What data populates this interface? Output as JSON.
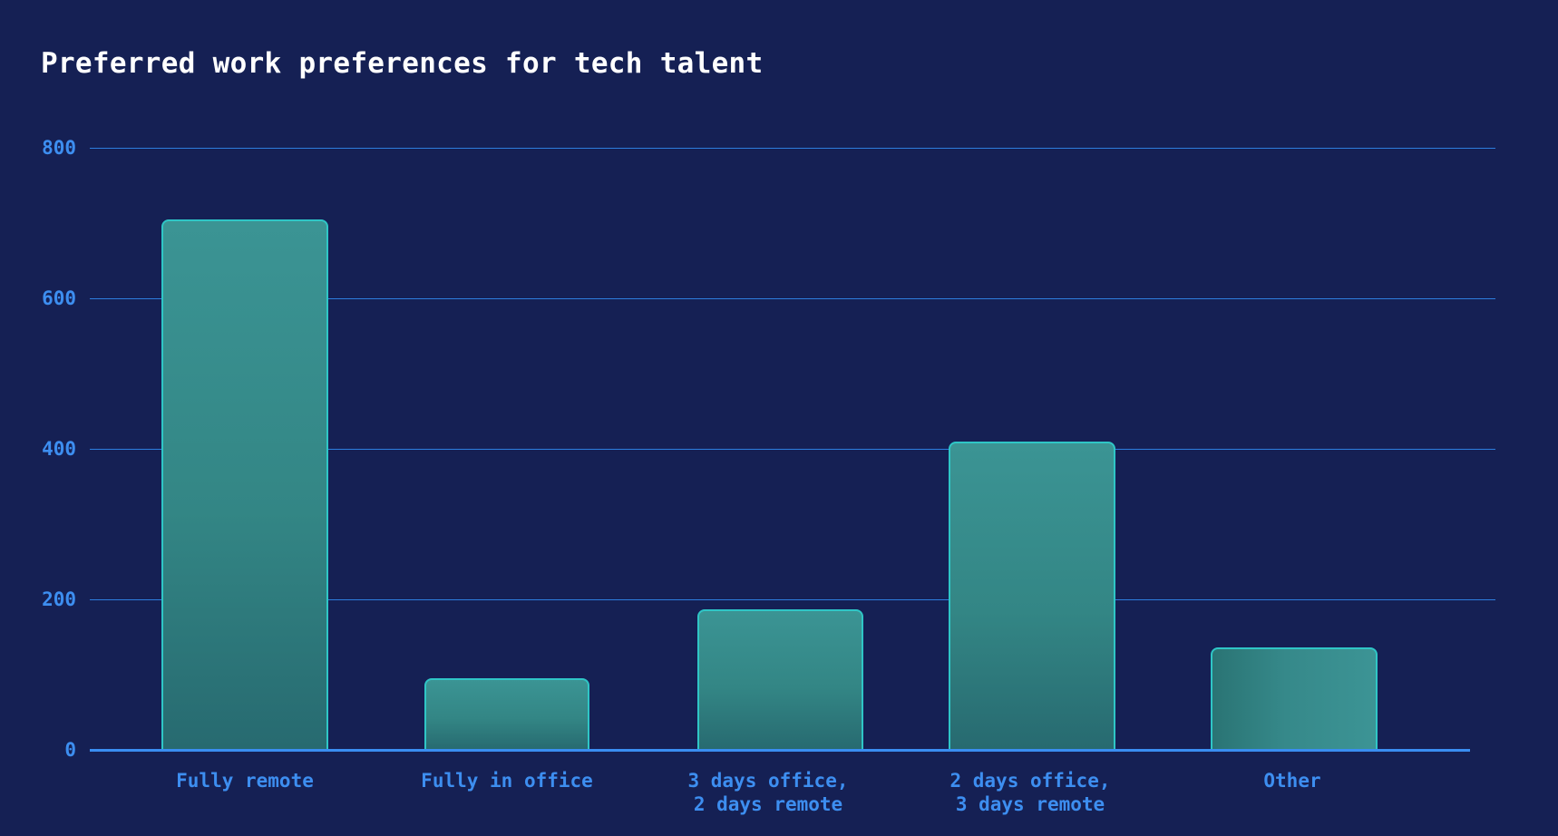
{
  "title": "Preferred work preferences for tech talent",
  "y_ticks": [
    "800",
    "600",
    "400",
    "200",
    "0"
  ],
  "x_labels": [
    "Fully remote",
    "Fully in office",
    "3 days office,\n2 days remote",
    "2 days office,\n3 days remote",
    "Other"
  ],
  "colors": {
    "background": "#152054",
    "gridline": "#2d7dde",
    "axis_text": "#3d8ef0",
    "bar_top": "#3b9494",
    "bar_bottom": "#276a70",
    "bar_border": "#2fc6c6",
    "title": "#ffffff"
  },
  "chart_data": {
    "type": "bar",
    "title": "Preferred work preferences for tech talent",
    "categories": [
      "Fully remote",
      "Fully in office",
      "3 days office, 2 days remote",
      "2 days office, 3 days remote",
      "Other"
    ],
    "values": [
      705,
      95,
      187,
      410,
      136
    ],
    "xlabel": "",
    "ylabel": "",
    "ylim": [
      0,
      800
    ],
    "yticks": [
      0,
      200,
      400,
      600,
      800
    ],
    "grid": "horizontal",
    "legend": "none"
  }
}
